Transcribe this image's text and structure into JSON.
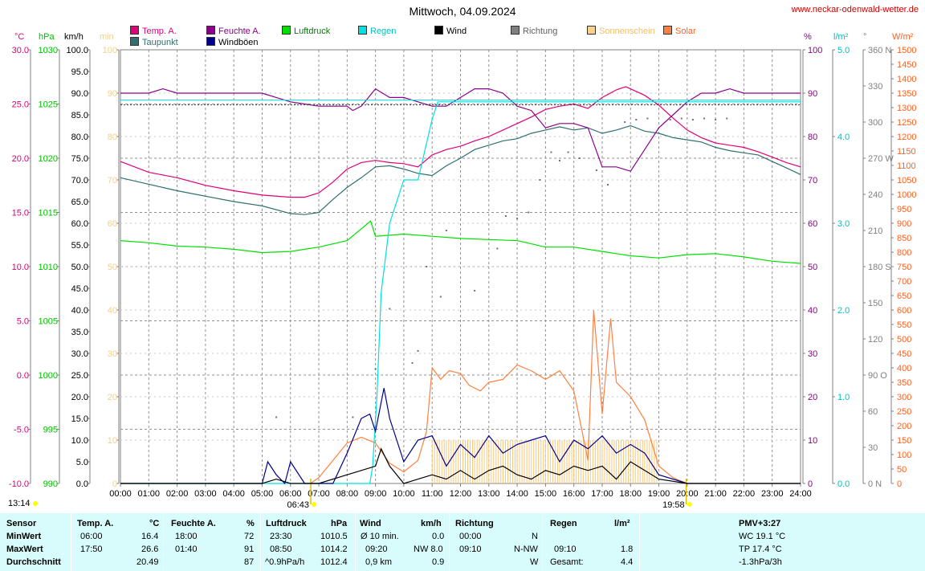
{
  "title": "Mittwoch, 04.09.2024",
  "url": "www.neckar-odenwald-wetter.de",
  "legend": [
    {
      "label": "Temp. A.",
      "color": "#e0007a"
    },
    {
      "label": "Taupunkt",
      "color": "#2f6f6f"
    },
    {
      "label": "Feuchte A.",
      "color": "#8b008b"
    },
    {
      "label": "Windböen",
      "color": "#00008b"
    },
    {
      "label": "Luftdruck",
      "color": "#00e000"
    },
    {
      "label": "Regen",
      "color": "#00e0e0"
    },
    {
      "label": "Wind",
      "color": "#000000"
    },
    {
      "label": "Richtung",
      "color": "#808080"
    },
    {
      "label": "Sonnenschein",
      "color": "#f8d090"
    },
    {
      "label": "Solar",
      "color": "#ff8040"
    }
  ],
  "axis_units": {
    "temp": "°C",
    "pressure": "hPa",
    "wind": "km/h",
    "sun": "min",
    "humidity": "%",
    "rain": "l/m²",
    "dir": "°",
    "solar": "W/m²"
  },
  "axes": {
    "temp_ticks": [
      "30.0",
      "25.0",
      "20.0",
      "15.0",
      "10.0",
      "5.0",
      "0.0",
      "-5.0",
      "-10.0"
    ],
    "pressure_ticks": [
      "1030",
      "1025",
      "1020",
      "1015",
      "1010",
      "1005",
      "1000",
      "995",
      "990"
    ],
    "wind_ticks": [
      "100.0",
      "95.0",
      "90.0",
      "85.0",
      "80.0",
      "75.0",
      "70.0",
      "65.0",
      "60.0",
      "55.0",
      "50.0",
      "45.0",
      "40.0",
      "35.0",
      "30.0",
      "25.0",
      "20.0",
      "15.0",
      "10.0",
      "5.0",
      "0.0"
    ],
    "sun_ticks": [
      "100",
      "90",
      "80",
      "70",
      "60",
      "50",
      "40",
      "30",
      "20",
      "10",
      "0"
    ],
    "humidity_ticks": [
      "100",
      "90",
      "80",
      "70",
      "60",
      "50",
      "40",
      "30",
      "20",
      "10",
      "0"
    ],
    "rain_ticks": [
      "5.0",
      "4.0",
      "3.0",
      "2.0",
      "1.0",
      "0.0"
    ],
    "dir_ticks": [
      "360 N",
      "330",
      "300",
      "270 W",
      "240",
      "210",
      "180 S",
      "150",
      "120",
      "90 O",
      "60",
      "30",
      "0 N"
    ],
    "solar_ticks": [
      "1500",
      "1450",
      "1400",
      "1350",
      "1300",
      "1250",
      "1200",
      "1150",
      "1100",
      "1050",
      "1000",
      "950",
      "900",
      "850",
      "800",
      "750",
      "700",
      "650",
      "600",
      "550",
      "500",
      "450",
      "400",
      "350",
      "300",
      "250",
      "200",
      "150",
      "100",
      "50",
      "0"
    ],
    "x_ticks": [
      "00:00",
      "01:00",
      "02:00",
      "03:00",
      "04:00",
      "05:00",
      "06:00",
      "07:00",
      "08:00",
      "09:00",
      "10:00",
      "11:00",
      "12:00",
      "13:00",
      "14:00",
      "15:00",
      "16:00",
      "17:00",
      "18:00",
      "19:00",
      "20:00",
      "21:00",
      "22:00",
      "23:00",
      "24:00"
    ],
    "sunrise": "06:43",
    "sunset": "19:58",
    "now": "13:14"
  },
  "chart_data": {
    "type": "line",
    "x_unit": "hours",
    "series": [
      {
        "name": "Temp. A.",
        "unit": "°C",
        "x": [
          0,
          1,
          2,
          3,
          4,
          5,
          6,
          6.5,
          7,
          7.5,
          8,
          8.5,
          9,
          9.5,
          10,
          10.5,
          11,
          11.5,
          12,
          12.5,
          13,
          13.5,
          14,
          14.5,
          15,
          15.5,
          16,
          16.5,
          17,
          17.5,
          17.83,
          18.5,
          19,
          19.5,
          20,
          20.5,
          21,
          21.5,
          22,
          22.5,
          23,
          23.5,
          24
        ],
        "values": [
          19.7,
          18.7,
          18.2,
          17.5,
          17.0,
          16.6,
          16.4,
          16.4,
          16.8,
          17.8,
          19.0,
          19.6,
          19.8,
          19.6,
          19.5,
          19.2,
          20.3,
          20.8,
          21.1,
          21.6,
          22.0,
          22.6,
          23.2,
          23.8,
          24.5,
          24.8,
          25.0,
          24.6,
          25.6,
          26.3,
          26.6,
          25.8,
          24.9,
          23.7,
          22.6,
          21.9,
          21.4,
          21.2,
          21.0,
          20.6,
          20.1,
          19.6,
          19.2
        ]
      },
      {
        "name": "Taupunkt",
        "unit": "°C",
        "x": [
          0,
          1,
          2,
          3,
          4,
          5,
          6,
          6.5,
          7,
          7.5,
          8,
          8.5,
          9,
          9.5,
          10,
          10.5,
          11,
          11.5,
          12,
          12.5,
          13,
          13.5,
          14,
          14.5,
          15,
          15.5,
          16,
          16.5,
          17,
          17.5,
          18,
          18.5,
          19,
          19.5,
          20,
          20.5,
          21,
          21.5,
          22,
          22.5,
          23,
          23.5,
          24
        ],
        "values": [
          18.2,
          17.6,
          17.0,
          16.5,
          16.0,
          15.6,
          14.9,
          14.8,
          15.0,
          16.2,
          17.3,
          18.2,
          19.2,
          19.3,
          19.0,
          18.6,
          18.4,
          19.3,
          20.0,
          20.8,
          21.2,
          21.6,
          21.8,
          22.3,
          22.6,
          22.9,
          22.6,
          22.8,
          22.3,
          22.6,
          23.0,
          22.5,
          22.3,
          21.9,
          21.7,
          21.5,
          21.0,
          20.7,
          20.5,
          20.3,
          19.7,
          19.1,
          18.5
        ]
      },
      {
        "name": "Feuchte A.",
        "unit": "%",
        "x": [
          0,
          1,
          1.5,
          2,
          3,
          4,
          5,
          5.5,
          6,
          7,
          8,
          8.2,
          8.5,
          9,
          9.5,
          10,
          10.5,
          11,
          11.5,
          12,
          12.5,
          13,
          13.5,
          14,
          14.5,
          15,
          15.5,
          16,
          16.5,
          17,
          17.5,
          18,
          18.5,
          19,
          19.5,
          20,
          20.5,
          21,
          21.5,
          22,
          23,
          24
        ],
        "values": [
          90,
          90,
          91,
          90,
          90,
          90,
          90,
          89,
          88,
          87,
          87,
          86,
          87,
          91,
          89,
          89,
          88,
          87,
          87,
          89,
          91,
          91,
          90,
          87,
          86,
          82,
          83,
          83,
          82,
          73,
          73,
          72,
          77,
          82,
          85,
          88,
          90,
          90,
          91,
          90,
          90,
          90
        ]
      },
      {
        "name": "Luftdruck",
        "unit": "hPa",
        "x": [
          0,
          1,
          2,
          3,
          4,
          5,
          6,
          7,
          8,
          8.83,
          9,
          10,
          11,
          12,
          13,
          14,
          15,
          16,
          17,
          18,
          19,
          20,
          21,
          22,
          23,
          24
        ],
        "values": [
          1012.4,
          1012.2,
          1011.9,
          1011.8,
          1011.6,
          1011.3,
          1011.4,
          1011.8,
          1012.4,
          1014.2,
          1012.8,
          1013.0,
          1012.8,
          1012.6,
          1012.5,
          1012.4,
          1011.8,
          1011.8,
          1011.4,
          1011.0,
          1010.8,
          1011.1,
          1011.2,
          1010.9,
          1010.5,
          1010.3
        ],
        "max": "1014.2",
        "min": "1010.5"
      },
      {
        "name": "Regen",
        "unit": "l/m²",
        "x": [
          0,
          8.8,
          8.9,
          9.05,
          9.2,
          9.5,
          10,
          10.5,
          11,
          11.2,
          24
        ],
        "values": [
          0,
          0,
          0.2,
          1.0,
          2.2,
          3.0,
          3.5,
          3.5,
          4.2,
          4.4,
          4.4
        ]
      },
      {
        "name": "Wind",
        "unit": "km/h",
        "x": [
          0,
          5,
          5.5,
          6,
          6.5,
          7,
          8,
          8.5,
          9,
          9.2,
          9.5,
          10,
          10.5,
          11,
          11.5,
          12,
          12.5,
          13,
          13.5,
          14,
          14.5,
          15,
          15.5,
          16,
          16.5,
          17,
          17.5,
          18,
          18.5,
          19,
          20,
          24
        ],
        "values": [
          0,
          0,
          1,
          0,
          0,
          0,
          2,
          3,
          4,
          8,
          4,
          0,
          1,
          2,
          1,
          3,
          1,
          3,
          4,
          2,
          1,
          3,
          2,
          4,
          3,
          4,
          1,
          5,
          3,
          1,
          0,
          0
        ]
      },
      {
        "name": "Windböen",
        "unit": "km/h",
        "x": [
          0,
          5,
          5.2,
          5.5,
          5.8,
          6,
          6.5,
          7,
          7.5,
          8,
          8.5,
          8.8,
          9,
          9.3,
          9.5,
          10,
          10.5,
          11,
          11.5,
          12,
          12.5,
          13,
          13.5,
          14,
          14.5,
          15,
          15.5,
          16,
          16.5,
          17,
          17.5,
          18,
          18.5,
          19,
          20,
          24
        ],
        "values": [
          0,
          0,
          5,
          2,
          0,
          5,
          0,
          0,
          0,
          7,
          15,
          16,
          12,
          22,
          15,
          5,
          10,
          11,
          4,
          9,
          6,
          11,
          7,
          9,
          10,
          11,
          5,
          10,
          8,
          11,
          7,
          9,
          7,
          2,
          0,
          0
        ]
      },
      {
        "name": "Sonnenschein",
        "unit": "min",
        "x": [
          11,
          11.5,
          12,
          12.5,
          13,
          13.5,
          14,
          14.5,
          15,
          15.5,
          16,
          16.5,
          17,
          17.5,
          18,
          18.5
        ],
        "values": [
          10,
          10,
          10,
          10,
          10,
          10,
          10,
          10,
          10,
          10,
          10,
          10,
          10,
          10,
          10,
          10
        ]
      },
      {
        "name": "Solar",
        "unit": "W/m²",
        "x": [
          6.7,
          7,
          7.5,
          8,
          8.5,
          9,
          9.5,
          10,
          10.5,
          10.8,
          11,
          11.3,
          11.6,
          12,
          12.3,
          12.7,
          13,
          13.5,
          14,
          14.5,
          15,
          15.5,
          16,
          16.5,
          16.7,
          17,
          17.3,
          17.5,
          18,
          18.5,
          19,
          19.5,
          20
        ],
        "values": [
          0,
          20,
          80,
          140,
          160,
          140,
          70,
          40,
          80,
          180,
          400,
          360,
          390,
          380,
          340,
          320,
          350,
          360,
          410,
          390,
          360,
          390,
          320,
          80,
          600,
          240,
          570,
          350,
          300,
          220,
          60,
          20,
          0
        ]
      },
      {
        "name": "Richtung",
        "unit": "°",
        "x": [
          5.5,
          8.2,
          9,
          9.5,
          10.3,
          10.5,
          10.8,
          11.3,
          11.5,
          12.5,
          13.3,
          13.6,
          14,
          14.4,
          14.8,
          15.2,
          15.5,
          15.8,
          16.2,
          16.8,
          17.2,
          17.8,
          18.2,
          18.6,
          19.4,
          19.8,
          20.2,
          20.6,
          21.0,
          21.4
        ],
        "values": [
          55,
          55,
          95,
          145,
          100,
          110,
          180,
          155,
          210,
          160,
          195,
          222,
          220,
          225,
          252,
          275,
          268,
          275,
          270,
          260,
          248,
          300,
          302,
          303,
          302,
          303,
          302,
          303,
          302,
          303
        ]
      }
    ]
  },
  "footer": {
    "headers": [
      "Sensor",
      "Temp. A.",
      "°C",
      "Feuchte A.",
      "%",
      "Luftdruck",
      "hPa",
      "Wind",
      "km/h",
      "Richtung",
      "Regen",
      "l/m²",
      "PMV+3:27"
    ],
    "rows": [
      {
        "label": "MinWert",
        "temp_time": "06:00",
        "temp_val": "16.4",
        "hum_time": "18:00",
        "hum_val": "72",
        "press_time": "23:30",
        "press_val": "1010.5",
        "wind_label": "Ø 10 min.",
        "wind_val": "0.0",
        "dir_time": "00:00",
        "dir_val": "N",
        "rain_time": "",
        "rain_val": "",
        "extra": "WC 19.1 °C"
      },
      {
        "label": "MaxWert",
        "temp_time": "17:50",
        "temp_val": "26.6",
        "hum_time": "01:40",
        "hum_val": "91",
        "press_time": "08:50",
        "press_val": "1014.2",
        "wind_label": "09:20",
        "wind_val": "NW 8.0",
        "dir_time": "09:10",
        "dir_val": "N-NW",
        "rain_time": "09:10",
        "rain_val": "1.8",
        "extra": "TP 17.4 °C"
      },
      {
        "label": "Durchschnitt",
        "temp_time": "",
        "temp_val": "20.49",
        "hum_time": "",
        "hum_val": "87",
        "press_time": "^0.9hPa/h",
        "press_val": "1012.4",
        "wind_label": "0,9 km",
        "wind_val": "0.9",
        "dir_time": "",
        "dir_val": "W",
        "rain_time": "Gesamt:",
        "rain_val": "4.4",
        "extra": "-1.3hPa/3h"
      }
    ]
  }
}
